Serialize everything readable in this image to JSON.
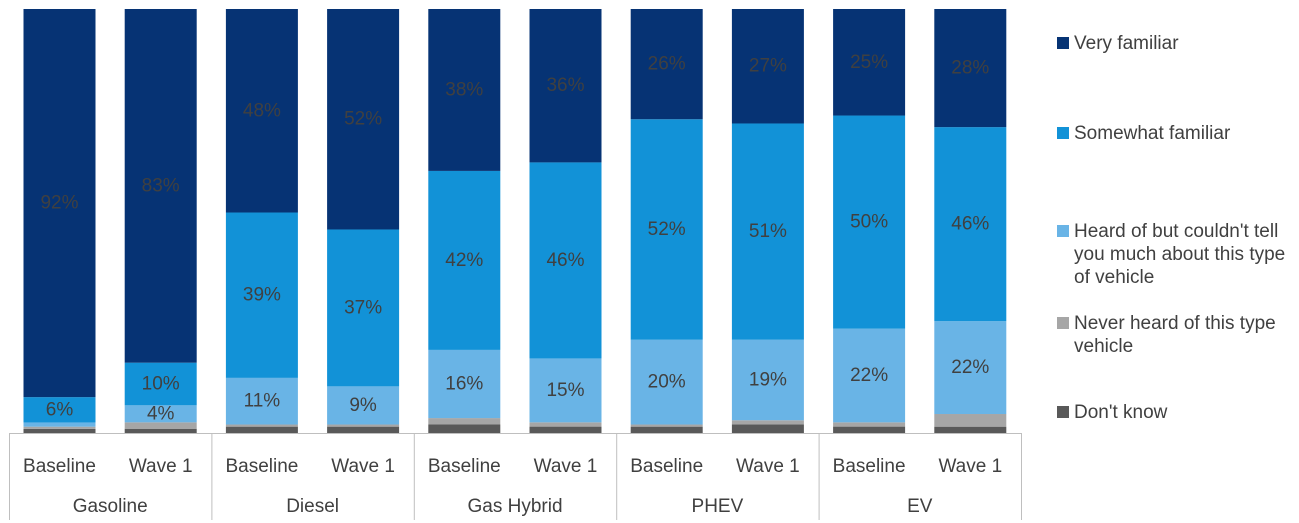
{
  "chart_data": {
    "type": "bar",
    "stacked": true,
    "orientation": "vertical",
    "ylim": [
      0,
      100
    ],
    "groups": [
      "Gasoline",
      "Diesel",
      "Gas Hybrid",
      "PHEV",
      "EV"
    ],
    "subcategories": [
      "Baseline",
      "Wave 1"
    ],
    "categories": [
      "Gasoline Baseline",
      "Gasoline Wave 1",
      "Diesel Baseline",
      "Diesel Wave 1",
      "Gas Hybrid Baseline",
      "Gas Hybrid Wave 1",
      "PHEV Baseline",
      "PHEV Wave 1",
      "EV Baseline",
      "EV Wave 1"
    ],
    "series": [
      {
        "name": "Don't know",
        "color": "#595959",
        "values": [
          1,
          1,
          1.5,
          1.5,
          2,
          1.5,
          1.5,
          2,
          1.5,
          1.5
        ],
        "labels": [
          "",
          "",
          "",
          "",
          "",
          "",
          "",
          "",
          "",
          ""
        ]
      },
      {
        "name": "Never heard of this type vehicle",
        "color": "#a6a6a6",
        "values": [
          0.5,
          1.5,
          0.5,
          0.5,
          1.5,
          1,
          0.5,
          1,
          1,
          3
        ],
        "labels": [
          "",
          "",
          "",
          "",
          "",
          "",
          "",
          "",
          "",
          ""
        ]
      },
      {
        "name": "Heard of but couldn't tell you much about this type of vehicle",
        "color": "#69b4e6",
        "values": [
          1,
          4,
          11,
          9,
          16,
          15,
          20,
          19,
          22,
          22
        ],
        "labels": [
          "",
          "4%",
          "11%",
          "9%",
          "16%",
          "15%",
          "20%",
          "19%",
          "22%",
          "22%"
        ]
      },
      {
        "name": "Somewhat familiar",
        "color": "#1292d7",
        "values": [
          6,
          10,
          39,
          37,
          42,
          46,
          52,
          51,
          50,
          46
        ],
        "labels": [
          "6%",
          "10%",
          "39%",
          "37%",
          "42%",
          "46%",
          "52%",
          "51%",
          "50%",
          "46%"
        ]
      },
      {
        "name": "Very familiar",
        "color": "#063374",
        "values": [
          92,
          83,
          48,
          52,
          38,
          36,
          26,
          27,
          25,
          28
        ],
        "labels": [
          "92%",
          "83%",
          "48%",
          "52%",
          "38%",
          "36%",
          "26%",
          "27%",
          "25%",
          "28%"
        ]
      }
    ],
    "legend": {
      "position": "right",
      "order": [
        "Very familiar",
        "Somewhat familiar",
        "Heard of but couldn't tell you much about this type of vehicle",
        "Never heard of this type vehicle",
        "Don't know"
      ]
    },
    "grid": false
  }
}
